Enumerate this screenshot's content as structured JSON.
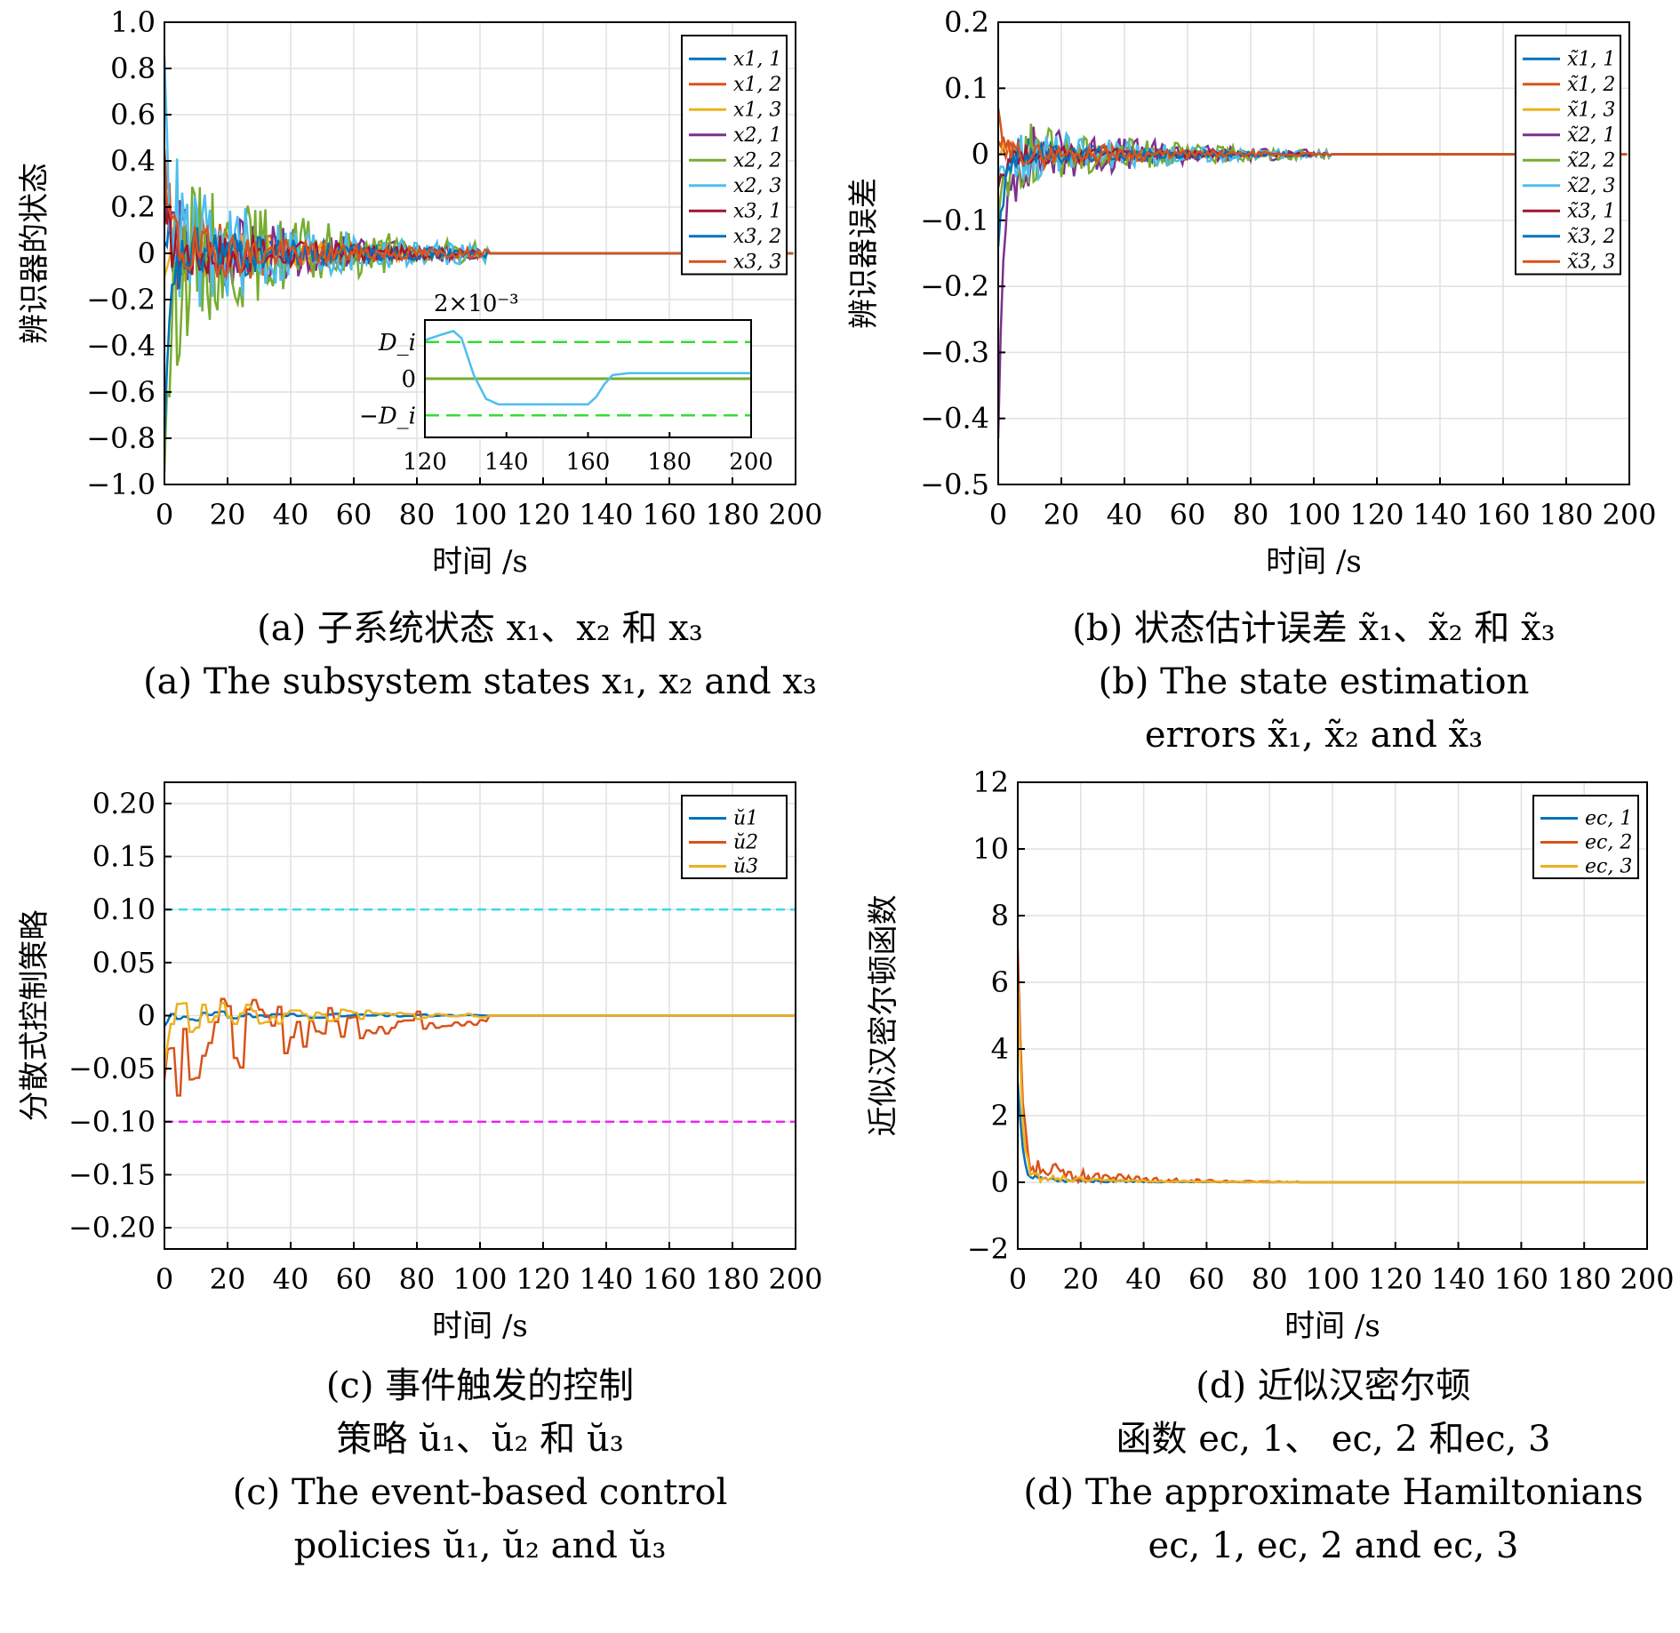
{
  "charts": [
    {
      "id": "a",
      "type": "line",
      "xlabel": "时间 /s",
      "ylabel": "辨识器的状态",
      "xlim": [
        0,
        200
      ],
      "ylim": [
        -1.0,
        1.0
      ],
      "xticks": [
        0,
        20,
        40,
        60,
        80,
        100,
        120,
        140,
        160,
        180,
        200
      ],
      "yticks": [
        -1.0,
        -0.8,
        -0.6,
        -0.4,
        -0.2,
        0,
        0.2,
        0.4,
        0.6,
        0.8,
        1.0
      ],
      "ytick_labels": [
        "−1.0",
        "−0.8",
        "−0.6",
        "−0.4",
        "−0.2",
        "0",
        "0.2",
        "0.4",
        "0.6",
        "0.8",
        "1.0"
      ],
      "grid": true,
      "legend_position": "top-right",
      "settle_time": 103,
      "caption_cn": "(a) 子系统状态 x₁、x₂ 和 x₃",
      "caption_en": "(a) The subsystem states x₁, x₂ and x₃",
      "series": [
        {
          "name": "x1, 1",
          "color": "#0072BD",
          "init": 0.05,
          "amp": 0.18,
          "seed": 11
        },
        {
          "name": "x1, 2",
          "color": "#D95319",
          "init": 0.45,
          "amp": 0.2,
          "seed": 12
        },
        {
          "name": "x1, 3",
          "color": "#EDB120",
          "init": -0.1,
          "amp": 0.15,
          "seed": 13
        },
        {
          "name": "x2, 1",
          "color": "#7E2F8E",
          "init": 0.3,
          "amp": 0.25,
          "seed": 14
        },
        {
          "name": "x2, 2",
          "color": "#77AC30",
          "init": -0.95,
          "amp": 0.4,
          "seed": 15
        },
        {
          "name": "x2, 3",
          "color": "#4DBEEE",
          "init": 0.85,
          "amp": 0.35,
          "seed": 16
        },
        {
          "name": "x3, 1",
          "color": "#A2142F",
          "init": 0.2,
          "amp": 0.15,
          "seed": 17
        },
        {
          "name": "x3, 2",
          "color": "#0072BD",
          "init": -0.8,
          "amp": 0.15,
          "seed": 18
        },
        {
          "name": "x3, 3",
          "color": "#D95319",
          "init": 0.35,
          "amp": 0.15,
          "seed": 19
        }
      ],
      "inset": {
        "scale_label": "2×10⁻³",
        "xlim": [
          120,
          200
        ],
        "xticks": [
          120,
          140,
          160,
          180,
          200
        ],
        "ytick_labels": [
          "D_i",
          "0",
          "−D_i"
        ],
        "threshold_color": "#33DD33",
        "threshold": 1,
        "ylim": [
          -1.6,
          1.6
        ],
        "curve_color": "#4DBEEE",
        "curve": [
          [
            120,
            1.05
          ],
          [
            124,
            1.2
          ],
          [
            127,
            1.3
          ],
          [
            129,
            1.1
          ],
          [
            132,
            0.1
          ],
          [
            135,
            -0.55
          ],
          [
            138,
            -0.7
          ],
          [
            150,
            -0.7
          ],
          [
            160,
            -0.7
          ],
          [
            162,
            -0.5
          ],
          [
            164,
            -0.15
          ],
          [
            166,
            0.1
          ],
          [
            170,
            0.15
          ],
          [
            200,
            0.15
          ]
        ],
        "flat_color": "#77AC30"
      }
    },
    {
      "id": "b",
      "type": "line",
      "xlabel": "时间 /s",
      "ylabel": "辨识器误差",
      "xlim": [
        0,
        200
      ],
      "ylim": [
        -0.5,
        0.2
      ],
      "xticks": [
        0,
        20,
        40,
        60,
        80,
        100,
        120,
        140,
        160,
        180,
        200
      ],
      "yticks": [
        -0.5,
        -0.4,
        -0.3,
        -0.2,
        -0.1,
        0,
        0.1,
        0.2
      ],
      "ytick_labels": [
        "−0.5",
        "−0.4",
        "−0.3",
        "−0.2",
        "−0.1",
        "0",
        "0.1",
        "0.2"
      ],
      "grid": true,
      "legend_position": "top-right",
      "settle_time": 105,
      "caption_cn": "(b) 状态估计误差 x̃₁、x̃₂ 和 x̃₃",
      "caption_en": "(b) The state estimation",
      "caption_en2": "errors x̃₁, x̃₂ and x̃₃",
      "series": [
        {
          "name": "x̃1, 1",
          "color": "#0072BD",
          "init": -0.05,
          "amp": 0.03,
          "seed": 21
        },
        {
          "name": "x̃1, 2",
          "color": "#D95319",
          "init": 0.07,
          "amp": 0.03,
          "seed": 22
        },
        {
          "name": "x̃1, 3",
          "color": "#EDB120",
          "init": 0.0,
          "amp": 0.02,
          "seed": 23
        },
        {
          "name": "x̃2, 1",
          "color": "#7E2F8E",
          "init": -0.43,
          "amp": 0.06,
          "seed": 24
        },
        {
          "name": "x̃2, 2",
          "color": "#77AC30",
          "init": -0.1,
          "amp": 0.06,
          "seed": 25
        },
        {
          "name": "x̃2, 3",
          "color": "#4DBEEE",
          "init": -0.03,
          "amp": 0.05,
          "seed": 26
        },
        {
          "name": "x̃3, 1",
          "color": "#A2142F",
          "init": -0.05,
          "amp": 0.02,
          "seed": 27
        },
        {
          "name": "x̃3, 2",
          "color": "#0072BD",
          "init": -0.14,
          "amp": 0.02,
          "seed": 28
        },
        {
          "name": "x̃3, 3",
          "color": "#D95319",
          "init": 0.02,
          "amp": 0.02,
          "seed": 29
        }
      ]
    },
    {
      "id": "c",
      "type": "line",
      "xlabel": "时间 /s",
      "ylabel": "分散式控制策略",
      "xlim": [
        0,
        200
      ],
      "ylim": [
        -0.22,
        0.22
      ],
      "xticks": [
        0,
        20,
        40,
        60,
        80,
        100,
        120,
        140,
        160,
        180,
        200
      ],
      "yticks": [
        -0.2,
        -0.15,
        -0.1,
        -0.05,
        0,
        0.05,
        0.1,
        0.15,
        0.2
      ],
      "ytick_labels": [
        "−0.20",
        "−0.15",
        "−0.10",
        "−0.05",
        "0",
        "0.05",
        "0.10",
        "0.15",
        "0.20"
      ],
      "grid": true,
      "legend_position": "top-right",
      "settle_time": 103,
      "bounds": [
        {
          "value": 0.1,
          "color": "#33DDEE"
        },
        {
          "value": -0.1,
          "color": "#EE22EE"
        }
      ],
      "caption_cn": "(c) 事件触发的控制",
      "caption_cn2": "策略 ŭ₁、ŭ₂ 和 ŭ₃",
      "caption_en": "(c) The event-based control",
      "caption_en2": "policies ŭ₁, ŭ₂ and ŭ₃",
      "series": [
        {
          "name": "ŭ1",
          "color": "#0072BD",
          "init": -0.01,
          "amp": 0.006,
          "seed": 31
        },
        {
          "name": "ŭ2",
          "color": "#D95319",
          "init": -0.06,
          "amp": 0.055,
          "seed": 32
        },
        {
          "name": "ŭ3",
          "color": "#EDB120",
          "init": -0.05,
          "amp": 0.02,
          "seed": 33
        }
      ]
    },
    {
      "id": "d",
      "type": "line",
      "xlabel": "时间 /s",
      "ylabel": "近似汉密尔顿函数",
      "xlim": [
        0,
        200
      ],
      "ylim": [
        -2,
        12
      ],
      "xticks": [
        0,
        20,
        40,
        60,
        80,
        100,
        120,
        140,
        160,
        180,
        200
      ],
      "yticks": [
        -2,
        0,
        2,
        4,
        6,
        8,
        10,
        12
      ],
      "ytick_labels": [
        "−2",
        "0",
        "2",
        "4",
        "6",
        "8",
        "10",
        "12"
      ],
      "grid": true,
      "legend_position": "top-right",
      "settle_time": 90,
      "caption_cn": "(d) 近似汉密尔顿",
      "caption_cn2": "函数 ec, 1、 ec, 2 和ec, 3",
      "caption_en": "(d) The approximate Hamiltonians",
      "caption_en2": "ec, 1, ec, 2 and ec, 3",
      "series": [
        {
          "name": "ec, 1",
          "color": "#0072BD",
          "init": 3.0,
          "amp": 0.25,
          "seed": 41
        },
        {
          "name": "ec, 2",
          "color": "#D95319",
          "init": 7.0,
          "amp": 0.9,
          "seed": 42
        },
        {
          "name": "ec, 3",
          "color": "#EDB120",
          "init": 6.0,
          "amp": 0.35,
          "seed": 43
        }
      ]
    }
  ]
}
